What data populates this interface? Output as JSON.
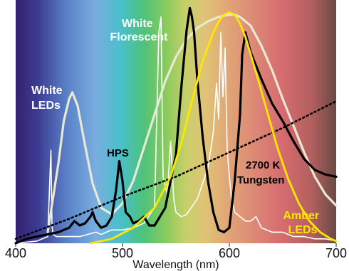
{
  "chart_data": {
    "type": "line",
    "title": "",
    "xlabel": "Wavelength (nm)",
    "ylabel": "",
    "xlim": [
      400,
      700
    ],
    "ylim": [
      0,
      1
    ],
    "x_ticks": [
      400,
      500,
      600,
      700
    ],
    "x_tick_labels": [
      "400",
      "500",
      "600",
      "700"
    ],
    "grid": false,
    "background": "visible-spectrum gradient (violet → blue → cyan → green → yellow → orange → red)",
    "series": [
      {
        "name": "White LEDs",
        "label": "White\nLEDs",
        "color": "#e8e8d4",
        "style": "solid-thick",
        "x": [
          430,
          440,
          445,
          450,
          453,
          458,
          465,
          472,
          480,
          490,
          500,
          510,
          520,
          530,
          540,
          550,
          560,
          570,
          580,
          590,
          600,
          605,
          610,
          620,
          630,
          640,
          650,
          660,
          670,
          680,
          690,
          700
        ],
        "y": [
          0.05,
          0.36,
          0.55,
          0.65,
          0.68,
          0.62,
          0.44,
          0.27,
          0.16,
          0.13,
          0.18,
          0.28,
          0.43,
          0.58,
          0.73,
          0.84,
          0.92,
          0.97,
          1.0,
          1.02,
          1.03,
          1.03,
          1.02,
          0.98,
          0.89,
          0.78,
          0.65,
          0.53,
          0.41,
          0.3,
          0.22,
          0.17
        ]
      },
      {
        "name": "White Florescent",
        "label": "White\nFlorescent",
        "color": "#ffffff",
        "style": "solid-thin-spiky",
        "x": [
          400,
          420,
          430,
          433,
          434,
          435,
          438,
          445,
          460,
          475,
          480,
          485,
          490,
          500,
          510,
          520,
          530,
          534,
          536,
          538,
          542,
          545,
          548,
          550,
          555,
          560,
          570,
          580,
          585,
          588,
          590,
          592,
          594,
          596,
          598,
          600,
          602,
          605,
          610,
          615,
          620,
          625,
          630,
          640,
          650,
          660,
          670,
          680,
          690,
          700
        ],
        "y": [
          0.0,
          0.01,
          0.03,
          0.42,
          0.08,
          0.04,
          0.03,
          0.03,
          0.03,
          0.05,
          0.04,
          0.05,
          0.06,
          0.06,
          0.07,
          0.09,
          0.16,
          0.95,
          1.02,
          0.3,
          0.22,
          0.46,
          0.2,
          0.14,
          0.12,
          0.13,
          0.2,
          0.34,
          0.5,
          0.72,
          0.56,
          0.95,
          0.66,
          0.88,
          0.42,
          0.3,
          0.2,
          0.14,
          0.12,
          0.1,
          0.1,
          0.12,
          0.07,
          0.05,
          0.05,
          0.03,
          0.03,
          0.02,
          0.02,
          0.01
        ]
      },
      {
        "name": "HPS",
        "label": "HPS",
        "color": "#000000",
        "style": "solid-thick",
        "x": [
          400,
          410,
          420,
          430,
          440,
          450,
          455,
          460,
          465,
          470,
          472,
          475,
          480,
          485,
          490,
          494,
          497,
          500,
          503,
          507,
          510,
          515,
          520,
          525,
          530,
          540,
          550,
          555,
          560,
          563,
          565,
          567,
          570,
          575,
          580,
          585,
          590,
          595,
          600,
          605,
          610,
          612,
          615,
          620,
          630,
          640,
          650,
          660,
          670,
          680,
          690,
          700
        ],
        "y": [
          0.0,
          0.02,
          0.03,
          0.04,
          0.05,
          0.07,
          0.1,
          0.08,
          0.09,
          0.12,
          0.14,
          0.1,
          0.07,
          0.08,
          0.12,
          0.24,
          0.37,
          0.28,
          0.14,
          0.12,
          0.09,
          0.1,
          0.12,
          0.08,
          0.08,
          0.16,
          0.4,
          0.7,
          0.96,
          1.06,
          1.02,
          0.95,
          0.74,
          0.48,
          0.28,
          0.14,
          0.06,
          0.05,
          0.07,
          0.28,
          0.58,
          0.85,
          0.95,
          0.86,
          0.74,
          0.63,
          0.55,
          0.46,
          0.38,
          0.33,
          0.31,
          0.3
        ]
      },
      {
        "name": "2700 K Tungsten",
        "label": "2700 K\nTungsten",
        "color": "#000000",
        "style": "dotted",
        "x": [
          400,
          450,
          500,
          550,
          600,
          650,
          700
        ],
        "y": [
          0.02,
          0.11,
          0.21,
          0.3,
          0.41,
          0.52,
          0.64
        ]
      },
      {
        "name": "Amber LEDs",
        "label": "Amber\nLEDs",
        "color": "#ffe600",
        "style": "solid",
        "x": [
          470,
          490,
          510,
          530,
          545,
          555,
          565,
          575,
          585,
          590,
          595,
          600,
          605,
          610,
          615,
          625,
          635,
          645,
          655,
          665,
          675,
          685,
          695,
          700
        ],
        "y": [
          0.0,
          0.02,
          0.07,
          0.16,
          0.3,
          0.45,
          0.64,
          0.82,
          0.95,
          1.0,
          1.03,
          1.04,
          1.03,
          0.99,
          0.93,
          0.77,
          0.6,
          0.43,
          0.29,
          0.18,
          0.1,
          0.05,
          0.02,
          0.01
        ]
      }
    ]
  }
}
